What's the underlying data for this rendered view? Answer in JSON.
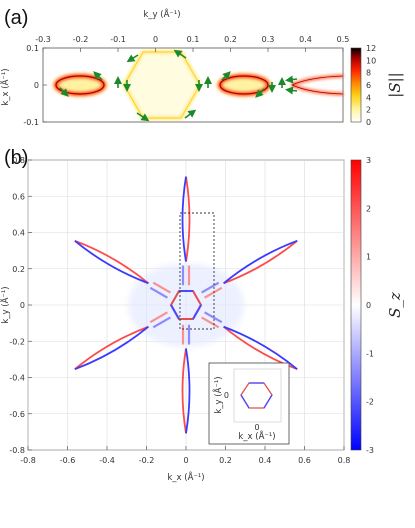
{
  "figure": {
    "panel_a_label": "(a)",
    "panel_b_label": "(b)"
  },
  "chart_data": [
    {
      "type": "heatmap",
      "panel": "(a)",
      "xlabel": "k_y (Å⁻¹)",
      "ylabel": "k_x (Å⁻¹)",
      "x_axis_position": "top",
      "xlim": [
        -0.3,
        0.5
      ],
      "ylim": [
        -0.1,
        0.1
      ],
      "x_ticks": [
        "-0.3",
        "-0.2",
        "-0.1",
        "0",
        "0.1",
        "0.2",
        "0.3",
        "0.4",
        "0.5"
      ],
      "y_ticks": [
        "0.1",
        "0",
        "-0.1"
      ],
      "colorbar": {
        "label": "|S||",
        "ticks": [
          "12",
          "10",
          "8",
          "6",
          "4",
          "2",
          "0"
        ],
        "range": [
          0,
          12
        ],
        "colors": [
          "#ffffff",
          "#fff4a0",
          "#ffd21a",
          "#ff8a00",
          "#ff2200",
          "#aa0000",
          "#000000"
        ]
      },
      "features": [
        {
          "name": "left-lobe",
          "center_ky": -0.2,
          "half_width": 0.07
        },
        {
          "name": "central-hexagon",
          "center_ky": 0.0,
          "radius": 0.09
        },
        {
          "name": "right-lobe",
          "center_ky": 0.2,
          "half_width": 0.07
        },
        {
          "name": "tail",
          "start_ky": 0.33,
          "end_ky": 0.5
        }
      ]
    },
    {
      "type": "heatmap",
      "panel": "(b)",
      "xlabel": "k_x (Å⁻¹)",
      "ylabel": "k_y (Å⁻¹)",
      "xlim": [
        -0.8,
        0.8
      ],
      "ylim": [
        -0.8,
        0.8
      ],
      "x_ticks": [
        "-0.8",
        "-0.6",
        "-0.4",
        "-0.2",
        "0",
        "0.2",
        "0.4",
        "0.6",
        "0.8"
      ],
      "y_ticks": [
        "0.8",
        "0.6",
        "0.4",
        "0.2",
        "0",
        "-0.2",
        "-0.4",
        "-0.6",
        "-0.8"
      ],
      "grid": true,
      "colorbar": {
        "label": "S_z",
        "ticks": [
          "3",
          "2",
          "1",
          "0",
          "-1",
          "-2",
          "-3"
        ],
        "range": [
          -3,
          3
        ],
        "colors": [
          "#0000ff",
          "#ffffff",
          "#ff0000"
        ]
      },
      "inset": {
        "xlabel": "k_x (Å⁻¹)",
        "ylabel": "k_y (Å⁻¹)",
        "x_tick": "0",
        "y_tick": "0"
      },
      "arms": [
        {
          "angle_deg": 90,
          "from": 0.22,
          "to": 0.65
        },
        {
          "angle_deg": 30,
          "from": 0.22,
          "to": 0.65
        },
        {
          "angle_deg": -30,
          "from": 0.22,
          "to": 0.65
        },
        {
          "angle_deg": -90,
          "from": 0.22,
          "to": 0.65
        },
        {
          "angle_deg": -150,
          "from": 0.22,
          "to": 0.65
        },
        {
          "angle_deg": 150,
          "from": 0.22,
          "to": 0.65
        }
      ]
    }
  ]
}
